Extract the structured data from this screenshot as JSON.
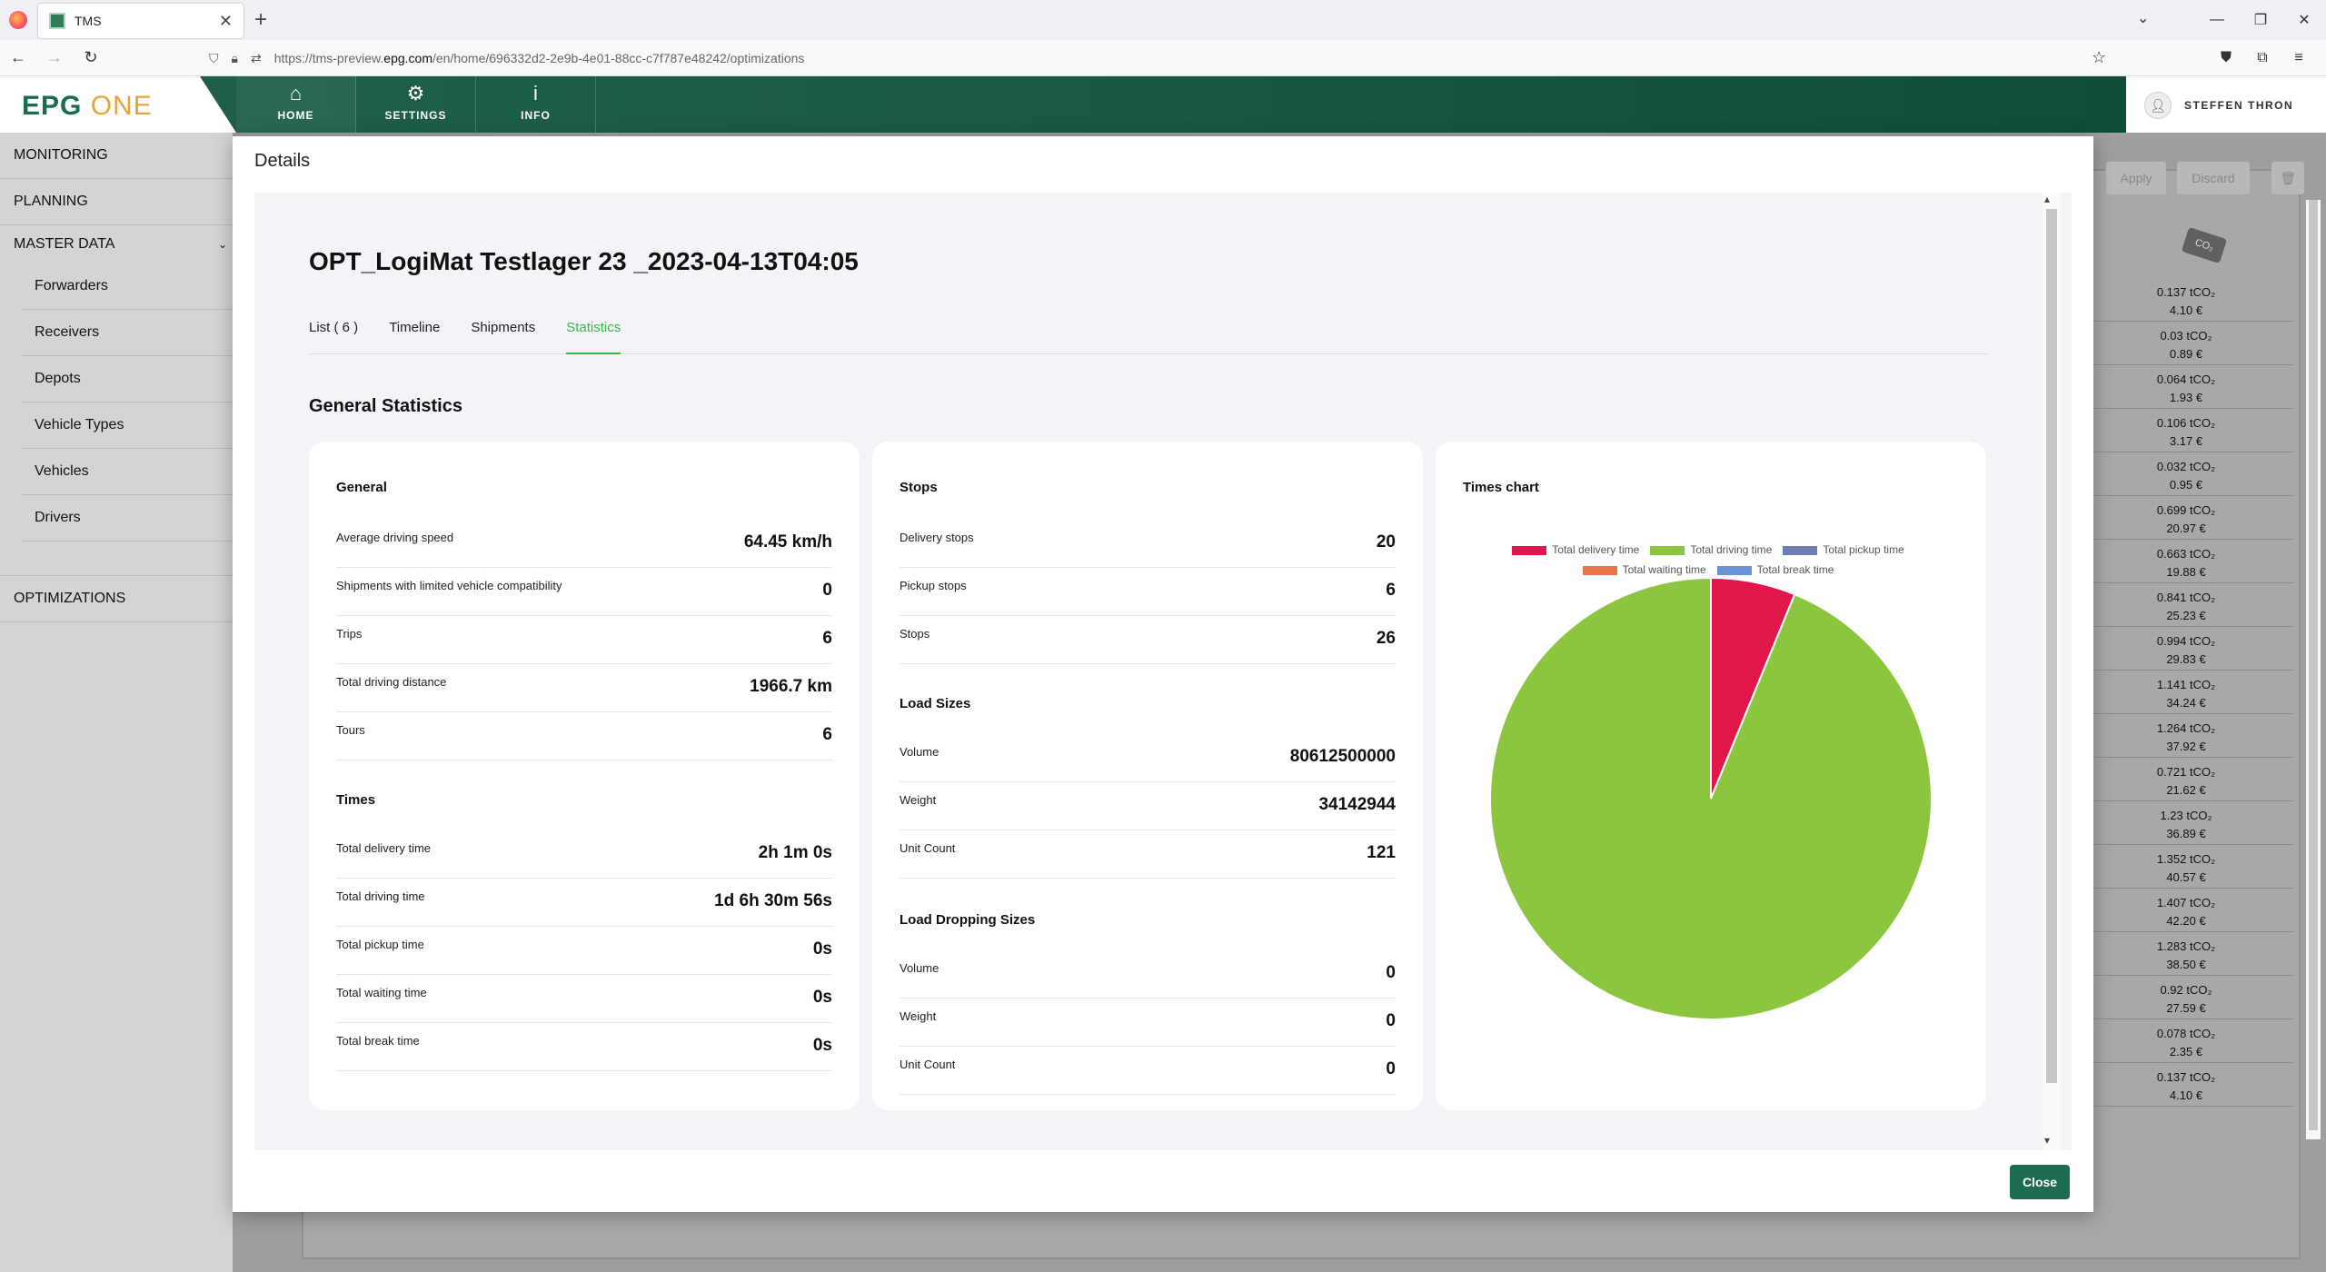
{
  "browser": {
    "tab_title": "TMS",
    "url_prefix": "https://tms-preview.",
    "url_domain": "epg.com",
    "url_suffix": "/en/home/696332d2-2e9b-4e01-88cc-c7f787e48242/optimizations"
  },
  "header": {
    "logo_epg": "EPG",
    "logo_one": "ONE",
    "nav": [
      {
        "label": "HOME",
        "icon": "home-icon"
      },
      {
        "label": "SETTINGS",
        "icon": "gear-icon"
      },
      {
        "label": "INFO",
        "icon": "info-icon"
      }
    ],
    "user": "STEFFEN THRON"
  },
  "sidebar": {
    "monitoring": "MONITORING",
    "planning": "PLANNING",
    "master_data": "MASTER DATA",
    "sub": [
      "Forwarders",
      "Receivers",
      "Depots",
      "Vehicle Types",
      "Vehicles",
      "Drivers"
    ],
    "optimizations": "OPTIMIZATIONS"
  },
  "background": {
    "apply": "Apply",
    "discard": "Discard",
    "co2_badge": "CO₂",
    "rows": [
      {
        "co2": "0.137 tCO₂",
        "cost": "4.10 €"
      },
      {
        "co2": "0.03 tCO₂",
        "cost": "0.89 €"
      },
      {
        "co2": "0.064 tCO₂",
        "cost": "1.93 €"
      },
      {
        "co2": "0.106 tCO₂",
        "cost": "3.17 €"
      },
      {
        "co2": "0.032 tCO₂",
        "cost": "0.95 €"
      },
      {
        "co2": "0.699 tCO₂",
        "cost": "20.97 €"
      },
      {
        "co2": "0.663 tCO₂",
        "cost": "19.88 €"
      },
      {
        "co2": "0.841 tCO₂",
        "cost": "25.23 €"
      },
      {
        "co2": "0.994 tCO₂",
        "cost": "29.83 €"
      },
      {
        "co2": "1.141 tCO₂",
        "cost": "34.24 €"
      },
      {
        "co2": "1.264 tCO₂",
        "cost": "37.92 €"
      },
      {
        "co2": "0.721 tCO₂",
        "cost": "21.62 €"
      },
      {
        "co2": "1.23 tCO₂",
        "cost": "36.89 €"
      },
      {
        "co2": "1.352 tCO₂",
        "cost": "40.57 €"
      },
      {
        "co2": "1.407 tCO₂",
        "cost": "42.20 €"
      },
      {
        "co2": "1.283 tCO₂",
        "cost": "38.50 €"
      },
      {
        "co2": "0.92 tCO₂",
        "cost": "27.59 €"
      },
      {
        "co2": "0.078 tCO₂",
        "cost": "2.35 €"
      },
      {
        "co2": "0.137 tCO₂",
        "cost": "4.10 €"
      }
    ]
  },
  "modal": {
    "title": "Details",
    "optimization_name": "OPT_LogiMat Testlager 23 _2023-04-13T04:05",
    "tabs": [
      "List ( 6 )",
      "Timeline",
      "Shipments",
      "Statistics"
    ],
    "active_tab": "Statistics",
    "section_title": "General Statistics",
    "close": "Close",
    "general": {
      "title": "General",
      "rows": [
        {
          "label": "Average driving speed",
          "value": "64.45 km/h"
        },
        {
          "label": "Shipments with limited vehicle compatibility",
          "value": "0"
        },
        {
          "label": "Trips",
          "value": "6"
        },
        {
          "label": "Total driving distance",
          "value": "1966.7 km"
        },
        {
          "label": "Tours",
          "value": "6"
        }
      ]
    },
    "times": {
      "title": "Times",
      "rows": [
        {
          "label": "Total delivery time",
          "value": "2h 1m 0s"
        },
        {
          "label": "Total driving time",
          "value": "1d 6h 30m 56s"
        },
        {
          "label": "Total pickup time",
          "value": "0s"
        },
        {
          "label": "Total waiting time",
          "value": "0s"
        },
        {
          "label": "Total break time",
          "value": "0s"
        }
      ]
    },
    "stops": {
      "title": "Stops",
      "rows": [
        {
          "label": "Delivery stops",
          "value": "20"
        },
        {
          "label": "Pickup stops",
          "value": "6"
        },
        {
          "label": "Stops",
          "value": "26"
        }
      ]
    },
    "load_sizes": {
      "title": "Load Sizes",
      "rows": [
        {
          "label": "Volume",
          "value": "80612500000"
        },
        {
          "label": "Weight",
          "value": "34142944"
        },
        {
          "label": "Unit Count",
          "value": "121"
        }
      ]
    },
    "load_dropping": {
      "title": "Load Dropping Sizes",
      "rows": [
        {
          "label": "Volume",
          "value": "0"
        },
        {
          "label": "Weight",
          "value": "0"
        },
        {
          "label": "Unit Count",
          "value": "0"
        }
      ]
    },
    "times_chart_title": "Times chart"
  },
  "chart_data": {
    "type": "pie",
    "title": "Times chart",
    "legend_position": "top",
    "series": [
      {
        "name": "Total delivery time",
        "value": 7260,
        "color": "#e0174a"
      },
      {
        "name": "Total driving time",
        "value": 109856,
        "color": "#8cc63f"
      },
      {
        "name": "Total pickup time",
        "value": 0,
        "color": "#6b7fb0"
      },
      {
        "name": "Total waiting time",
        "value": 0,
        "color": "#e8764a"
      },
      {
        "name": "Total break time",
        "value": 0,
        "color": "#6a93d8"
      }
    ]
  }
}
